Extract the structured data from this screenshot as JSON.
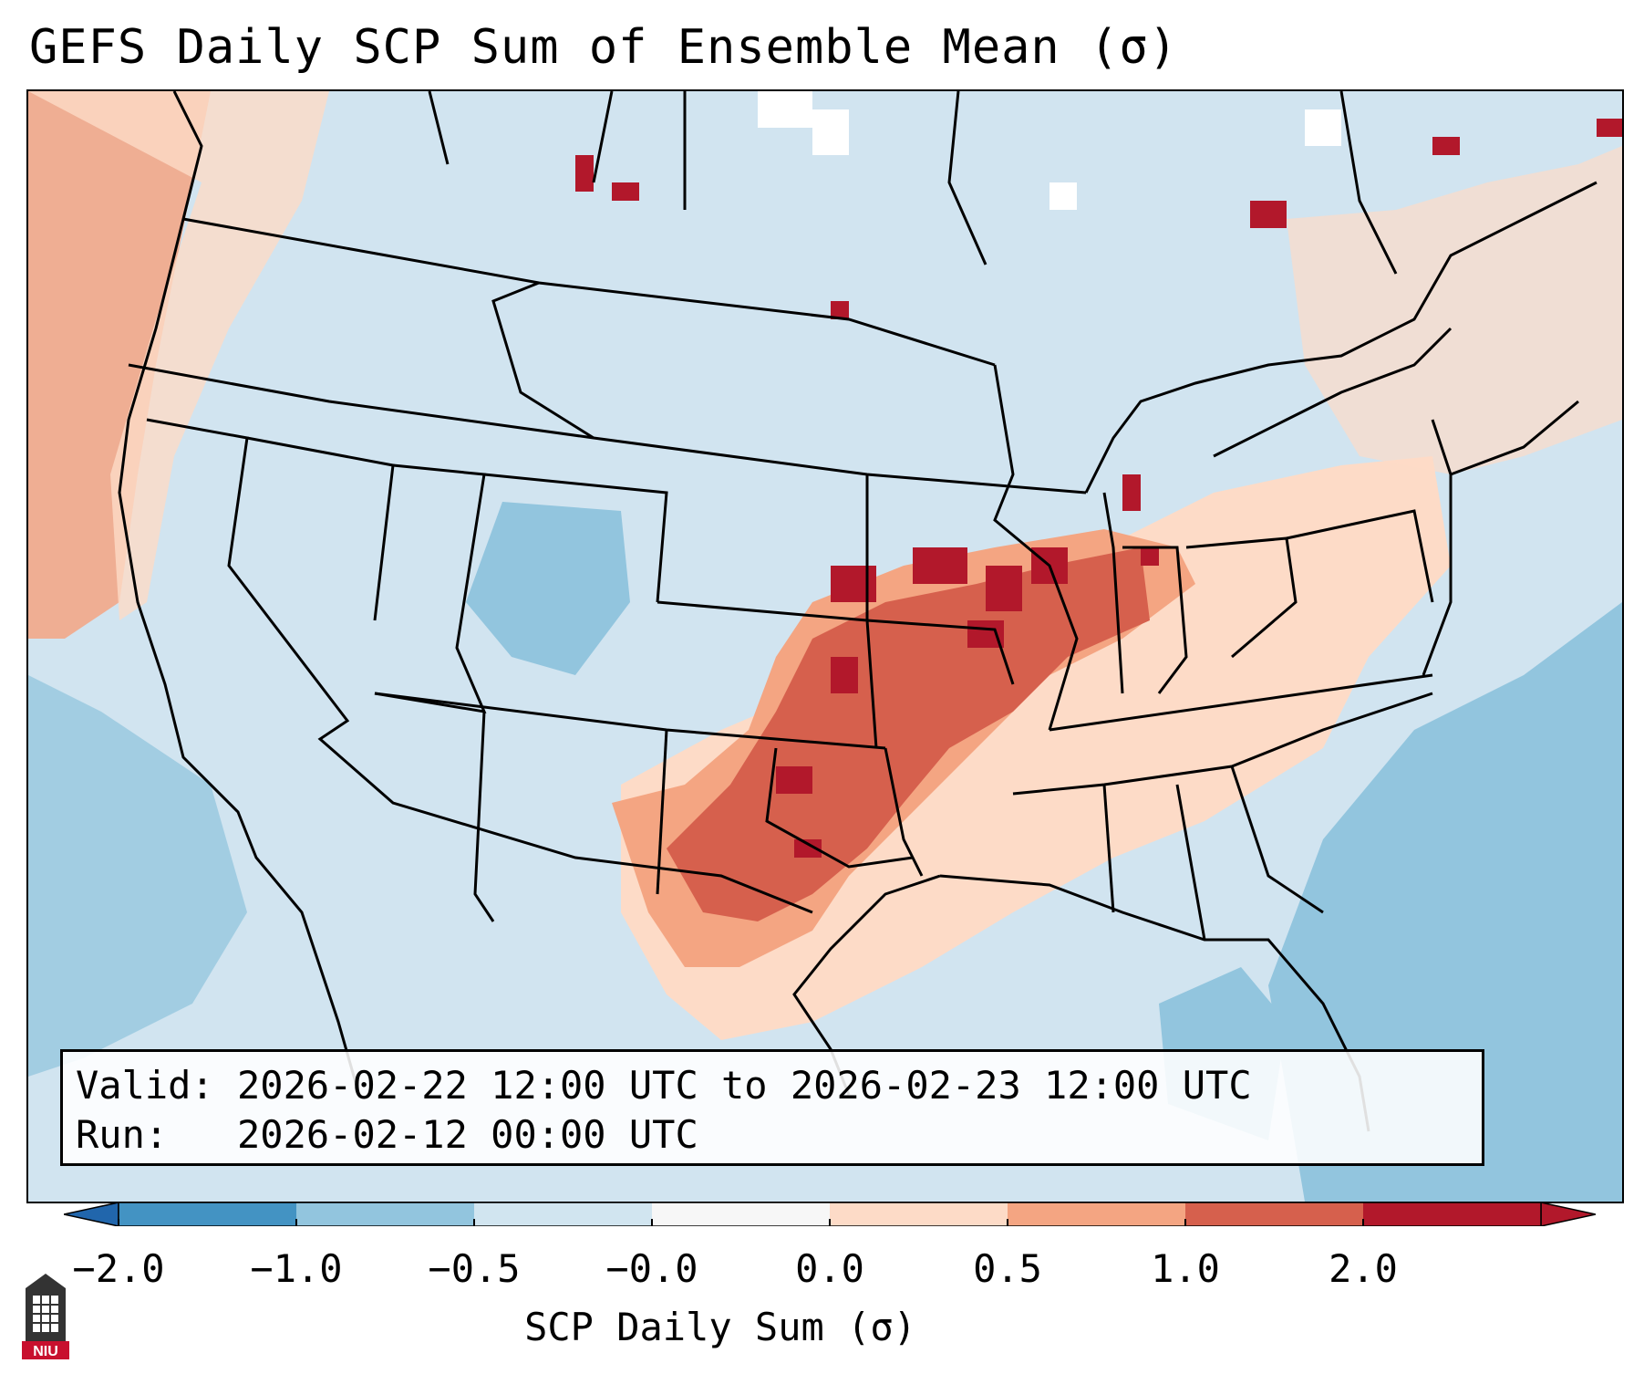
{
  "title": "GEFS Daily SCP Sum of Ensemble Mean (σ)",
  "info": {
    "valid_label": "Valid:",
    "valid_value": "2026-02-22 12:00 UTC to 2026-02-23 12:00 UTC",
    "run_label": "Run:",
    "run_value": "2026-02-12 00:00 UTC"
  },
  "colorbar": {
    "label": "SCP Daily Sum (σ)",
    "ticks": [
      "−2.0",
      "−1.0",
      "−0.5",
      "−0.0",
      "0.0",
      "0.5",
      "1.0",
      "2.0"
    ],
    "colors": [
      "#4393c3",
      "#92c5de",
      "#d1e5f0",
      "#f7f7f7",
      "#fddbc7",
      "#f4a582",
      "#d6604d",
      "#b2182b"
    ],
    "extend_low_color": "#2166ac",
    "extend_high_color": "#b2182b"
  },
  "map": {
    "background_color": "#d1e4f0",
    "fill_colors": {
      "light_blue": "#d1e4f0",
      "mid_blue": "#92c5de",
      "light_red": "#fddbc7",
      "mid_red": "#f4a582",
      "red": "#d6604d",
      "dark_red": "#b2182b"
    }
  },
  "logo": {
    "text": "NIU",
    "color": "#c8102e"
  }
}
